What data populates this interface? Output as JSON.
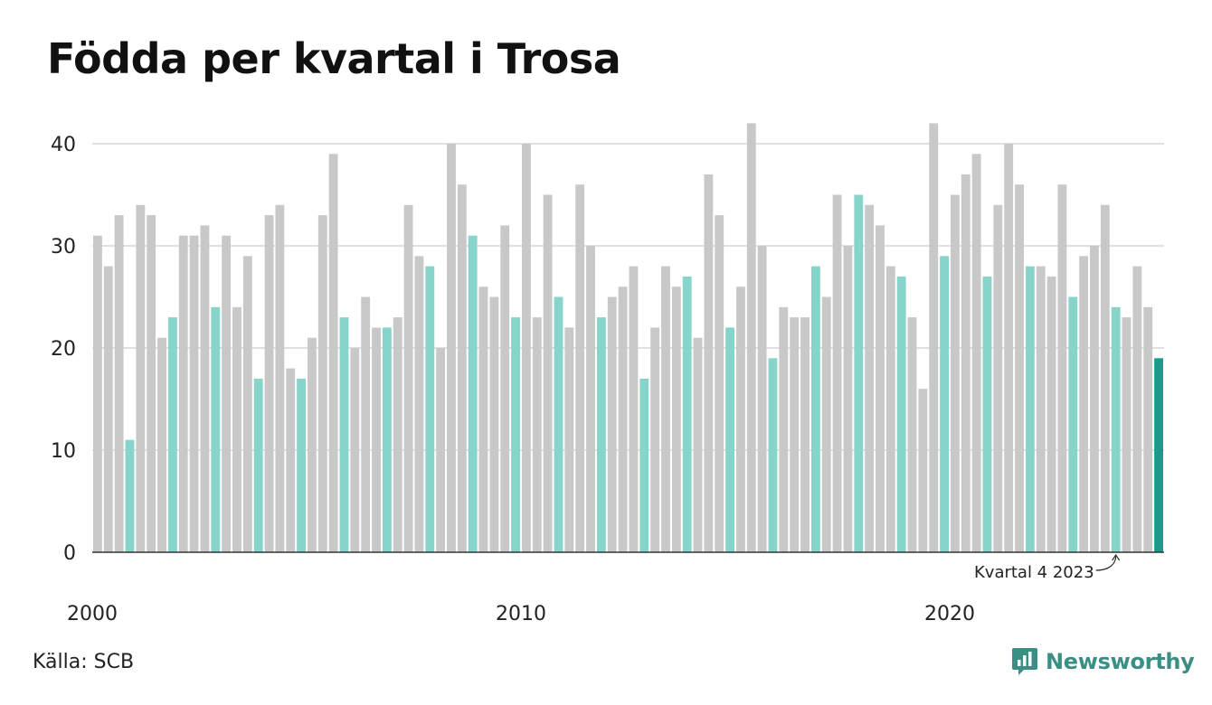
{
  "chart_data": {
    "type": "bar",
    "title": "Födda per kvartal i Trosa",
    "xlabel": "",
    "ylabel": "",
    "ylim": [
      0,
      42
    ],
    "yticks": [
      0,
      10,
      20,
      30,
      40
    ],
    "x_tick_labels": [
      "2000",
      "2010",
      "2020"
    ],
    "grid": true,
    "start": {
      "year": 2000,
      "quarter": 1
    },
    "series": [
      {
        "values": [
          31,
          28,
          33,
          11,
          34,
          33,
          21,
          23,
          31,
          31,
          32,
          24,
          31,
          24,
          29,
          17,
          33,
          34,
          18,
          17,
          21,
          33,
          39,
          23,
          20,
          25,
          22,
          22,
          23,
          34,
          29,
          28,
          20,
          40,
          36,
          31,
          26,
          25,
          32,
          23,
          40,
          23,
          35,
          25,
          22,
          36,
          30,
          23,
          25,
          26,
          28,
          17,
          22,
          28,
          26,
          27,
          21,
          37,
          33,
          22,
          26,
          42,
          30,
          19,
          24,
          23,
          23,
          28,
          25,
          35,
          30,
          35,
          34,
          32,
          28,
          27,
          23,
          16,
          42,
          29,
          35,
          37,
          39,
          27,
          34,
          40,
          36,
          28,
          28,
          27,
          36,
          25,
          29,
          30,
          34,
          24,
          23,
          28,
          24,
          19
        ]
      }
    ],
    "annotation": {
      "text": "Kvartal 4 2023",
      "target_year": 2023,
      "target_quarter": 4
    },
    "colors": {
      "default": "#c8c8c8",
      "q4": "#87d4ca",
      "latest": "#1a9a8b",
      "grid": "#e0e0e0",
      "axis": "#333333"
    }
  },
  "footer": {
    "source": "Källa: SCB",
    "brand": "Newsworthy"
  }
}
